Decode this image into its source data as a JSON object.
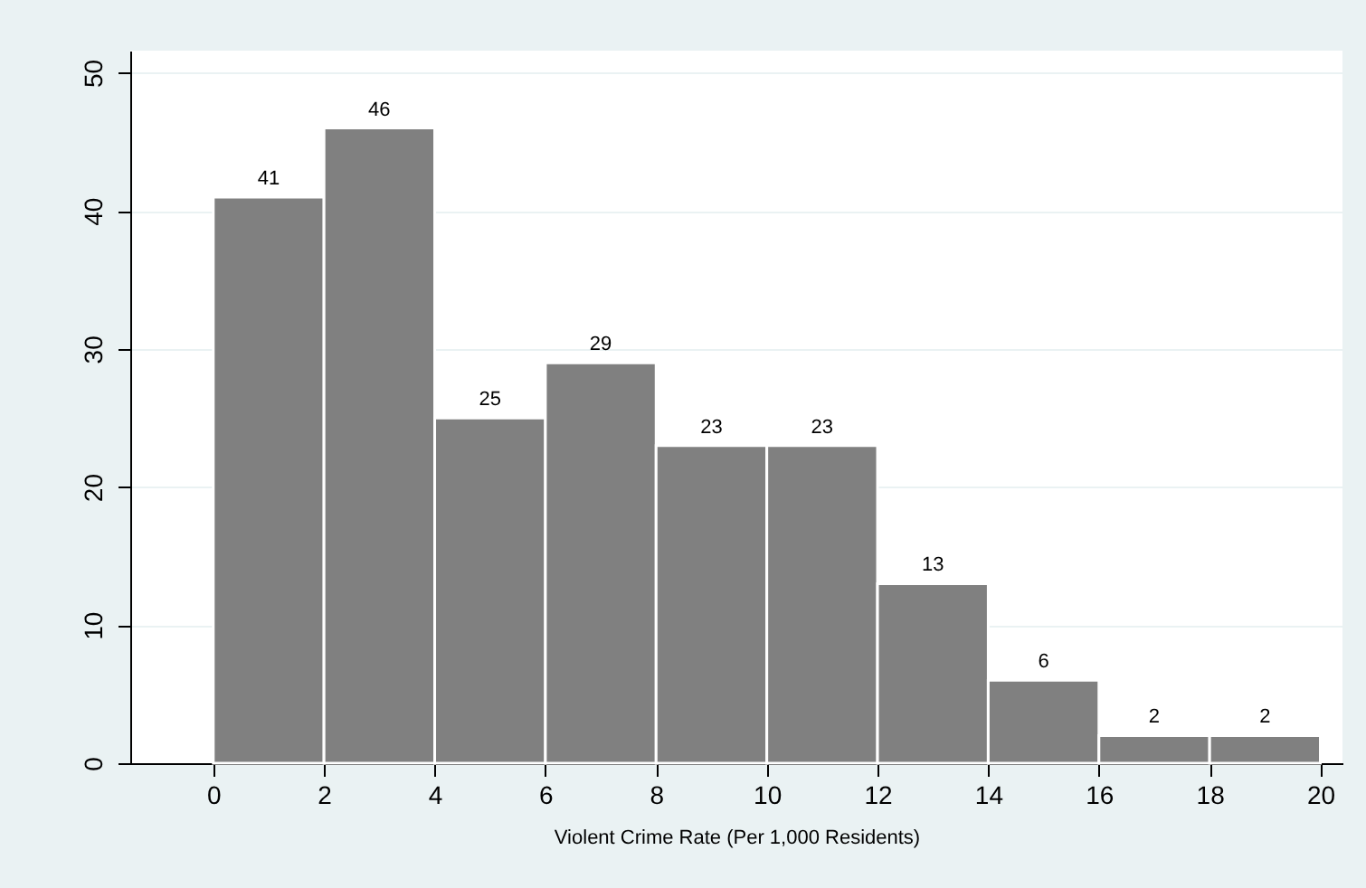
{
  "chart_data": {
    "type": "histogram",
    "xlabel": "Violent Crime Rate (Per 1,000 Residents)",
    "bins": [
      0,
      2,
      4,
      6,
      8,
      10,
      12,
      14,
      16,
      18,
      20
    ],
    "values": [
      41,
      46,
      25,
      29,
      23,
      23,
      13,
      6,
      2,
      2
    ],
    "color": "#808080",
    "data_labels": true,
    "grid": "y",
    "xlim": [
      -1.5,
      20.4
    ],
    "ylim": [
      0,
      51.6
    ],
    "xticks": [
      0,
      2,
      4,
      6,
      8,
      10,
      12,
      14,
      16,
      18,
      20
    ],
    "yticks": [
      0,
      10,
      20,
      30,
      40,
      50
    ]
  }
}
